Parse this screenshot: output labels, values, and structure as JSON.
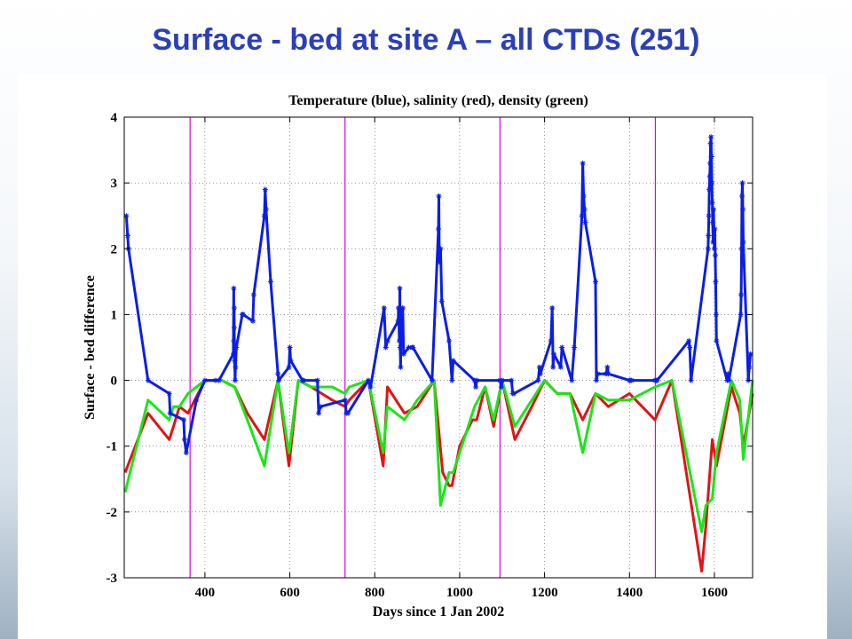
{
  "slide": {
    "title": "Surface - bed at site A – all CTDs (251)"
  },
  "colors": {
    "title": "#2b3fb8",
    "temperature": "#0a1ee6",
    "salinity": "#e01414",
    "density": "#19e619",
    "year_markers": "#dd00dd"
  },
  "chart_data": {
    "type": "line",
    "title": "Temperature (blue), salinity (red), density (green)",
    "xlabel": "Days since 1 Jan 2002",
    "ylabel": "Surface - bed difference",
    "xlim": [
      210,
      1690
    ],
    "ylim": [
      -3,
      4
    ],
    "xticks": [
      400,
      600,
      800,
      1000,
      1200,
      1400,
      1600
    ],
    "yticks": [
      -3,
      -2,
      -1,
      0,
      1,
      2,
      3,
      4
    ],
    "grid": true,
    "vertical_markers": [
      365,
      730,
      1095,
      1461
    ],
    "series": [
      {
        "color": "#0a1ee6",
        "marker": "*",
        "x": [
          215,
          218,
          220,
          266,
          316,
          318,
          350,
          352,
          356,
          380,
          400,
          425,
          433,
          467,
          468,
          468,
          469,
          469,
          470,
          471,
          472,
          474,
          488,
          490,
          513,
          515,
          540,
          542,
          544,
          555,
          572,
          574,
          598,
          600,
          602,
          630,
          632,
          665,
          668,
          672,
          730,
          733,
          737,
          785,
          790,
          822,
          826,
          830,
          855,
          856,
          858,
          859,
          860,
          861,
          862,
          866,
          868,
          880,
          888,
          890,
          935,
          950,
          951,
          952,
          955,
          958,
          975,
          982,
          985,
          1035,
          1038,
          1040,
          1095,
          1098,
          1100,
          1122,
          1125,
          1128,
          1185,
          1188,
          1190,
          1215,
          1218,
          1220,
          1222,
          1238,
          1241,
          1264,
          1270,
          1288,
          1290,
          1292,
          1294,
          1296,
          1320,
          1322,
          1325,
          1345,
          1348,
          1350,
          1400,
          1402,
          1405,
          1460,
          1463,
          1465,
          1540,
          1542,
          1545,
          1585,
          1586,
          1587,
          1588,
          1589,
          1590,
          1591,
          1592,
          1593,
          1594,
          1595,
          1596,
          1597,
          1598,
          1599,
          1600,
          1601,
          1602,
          1603,
          1604,
          1605,
          1630,
          1632,
          1634,
          1662,
          1663,
          1664,
          1665,
          1666,
          1667,
          1668,
          1680,
          1682,
          1685
        ],
        "y": [
          2.5,
          2.2,
          2.0,
          0.0,
          -0.2,
          -0.5,
          -0.6,
          -0.9,
          -1.1,
          -0.3,
          0.0,
          0.0,
          0.0,
          0.4,
          1.4,
          0.6,
          1.1,
          0.8,
          0.3,
          0.0,
          0.2,
          0.5,
          1.0,
          1.0,
          0.9,
          1.3,
          2.5,
          2.9,
          2.6,
          1.5,
          0.1,
          0.0,
          0.2,
          0.5,
          0.3,
          0.0,
          0.0,
          0.0,
          -0.5,
          -0.4,
          -0.3,
          -0.5,
          -0.5,
          0.0,
          -0.1,
          1.1,
          0.5,
          0.6,
          0.9,
          1.1,
          0.6,
          1.4,
          0.5,
          0.2,
          0.9,
          1.1,
          0.4,
          0.5,
          0.5,
          0.5,
          0.0,
          2.3,
          2.8,
          1.8,
          2.0,
          1.2,
          0.6,
          0.0,
          0.3,
          0.0,
          -0.1,
          0.0,
          0.0,
          -0.1,
          0.0,
          0.0,
          -0.2,
          -0.2,
          0.0,
          0.2,
          0.1,
          0.6,
          1.1,
          0.2,
          0.4,
          0.2,
          0.5,
          0.0,
          0.5,
          2.5,
          3.3,
          2.8,
          2.6,
          2.4,
          1.5,
          0.0,
          0.1,
          0.1,
          0.2,
          0.1,
          0.0,
          0.0,
          0.0,
          0.0,
          0.0,
          0.0,
          0.6,
          0.5,
          0.0,
          2.0,
          2.2,
          2.5,
          2.9,
          3.1,
          3.3,
          3.6,
          3.7,
          3.4,
          3.0,
          2.7,
          2.4,
          2.1,
          2.6,
          2.2,
          2.0,
          2.3,
          1.9,
          1.5,
          1.0,
          0.6,
          0.0,
          0.1,
          0.0,
          1.0,
          1.3,
          2.0,
          2.8,
          3.0,
          2.6,
          2.1,
          0.0,
          0.2,
          0.4
        ]
      },
      {
        "color": "#e01414",
        "marker": "none",
        "x": [
          212,
          266,
          316,
          326,
          340,
          360,
          400,
          440,
          470,
          500,
          540,
          572,
          598,
          620,
          650,
          700,
          730,
          740,
          785,
          820,
          830,
          870,
          900,
          940,
          960,
          975,
          982,
          1000,
          1030,
          1040,
          1060,
          1080,
          1100,
          1130,
          1170,
          1200,
          1230,
          1260,
          1290,
          1320,
          1350,
          1400,
          1460,
          1500,
          1570,
          1580,
          1595,
          1605,
          1640,
          1660,
          1668,
          1690
        ],
        "y": [
          -1.4,
          -0.5,
          -0.9,
          -0.7,
          -0.4,
          -0.5,
          0.0,
          0.0,
          -0.1,
          -0.5,
          -0.9,
          0.0,
          -1.3,
          0.0,
          -0.1,
          -0.3,
          -0.4,
          -0.3,
          0.0,
          -1.3,
          -0.1,
          -0.5,
          -0.4,
          0.0,
          -1.4,
          -1.6,
          -1.6,
          -1.0,
          -0.6,
          -0.6,
          -0.1,
          -0.7,
          0.0,
          -0.9,
          -0.4,
          0.0,
          -0.2,
          -0.2,
          -0.6,
          -0.2,
          -0.4,
          -0.2,
          -0.6,
          0.0,
          -2.9,
          -2.2,
          -0.9,
          -1.3,
          -0.1,
          -0.5,
          -1.0,
          -0.2
        ]
      },
      {
        "color": "#19e619",
        "marker": "none",
        "x": [
          212,
          266,
          316,
          326,
          340,
          360,
          400,
          440,
          470,
          500,
          540,
          572,
          598,
          620,
          650,
          700,
          730,
          740,
          785,
          820,
          830,
          870,
          900,
          940,
          955,
          975,
          985,
          1010,
          1035,
          1060,
          1080,
          1100,
          1130,
          1170,
          1200,
          1230,
          1260,
          1290,
          1320,
          1350,
          1400,
          1460,
          1500,
          1570,
          1580,
          1595,
          1605,
          1640,
          1660,
          1668,
          1690
        ],
        "y": [
          -1.7,
          -0.3,
          -0.6,
          -0.4,
          -0.4,
          -0.2,
          0.0,
          0.0,
          -0.1,
          -0.6,
          -1.3,
          0.0,
          -1.1,
          0.0,
          -0.1,
          -0.1,
          -0.2,
          -0.1,
          0.0,
          -1.1,
          -0.4,
          -0.6,
          -0.3,
          0.0,
          -1.9,
          -1.4,
          -1.4,
          -0.9,
          -0.4,
          -0.1,
          -0.6,
          0.0,
          -0.7,
          -0.3,
          0.0,
          -0.2,
          -0.2,
          -1.1,
          -0.2,
          -0.3,
          -0.3,
          -0.1,
          0.0,
          -2.3,
          -1.9,
          -1.8,
          -1.1,
          0.0,
          -0.3,
          -1.2,
          0.0
        ]
      }
    ]
  }
}
